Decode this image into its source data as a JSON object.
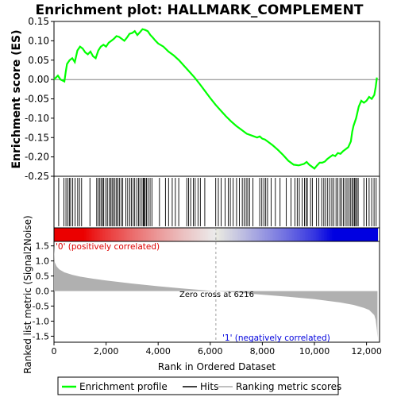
{
  "chart_data": {
    "type": "line",
    "title": "Enrichment plot: HALLMARK_COMPLEMENT",
    "xlabel": "Rank in Ordered Dataset",
    "top_ylabel": "Enrichment score (ES)",
    "bottom_ylabel": "Ranked list metric (Signal2Noise)",
    "xlim": [
      0,
      12500
    ],
    "top_ylim": [
      -0.25,
      0.15
    ],
    "bottom_ylim": [
      -1.7,
      1.65
    ],
    "x_ticks": [
      0,
      2000,
      4000,
      6000,
      8000,
      10000,
      12000
    ],
    "x_tick_labels": [
      "0",
      "2,000",
      "4,000",
      "6,000",
      "8,000",
      "10,000",
      "12,000"
    ],
    "top_y_ticks": [
      0.15,
      0.1,
      0.05,
      0.0,
      -0.05,
      -0.1,
      -0.15,
      -0.2,
      -0.25
    ],
    "top_y_tick_labels": [
      "0.15",
      "0.10",
      "0.05",
      "0.00",
      "-0.05",
      "-0.10",
      "-0.15",
      "-0.20",
      "-0.25"
    ],
    "bottom_y_ticks": [
      1.5,
      1.0,
      0.5,
      0.0,
      -0.5,
      -1.0,
      -1.5
    ],
    "bottom_y_tick_labels": [
      "1.5",
      "1.0",
      "0.5",
      "0.0",
      "-0.5",
      "-1.0",
      "-1.5"
    ],
    "series": [
      {
        "name": "Enrichment profile",
        "color": "#00ff00",
        "x": [
          0,
          150,
          250,
          400,
          450,
          500,
          600,
          700,
          800,
          900,
          1000,
          1100,
          1200,
          1300,
          1400,
          1500,
          1600,
          1700,
          1800,
          1900,
          2000,
          2100,
          2200,
          2300,
          2400,
          2500,
          2600,
          2700,
          2800,
          2900,
          3000,
          3100,
          3200,
          3300,
          3400,
          3500,
          3600,
          3700,
          3800,
          3900,
          4000,
          4200,
          4400,
          4600,
          4800,
          5000,
          5200,
          5400,
          5600,
          5800,
          6000,
          6200,
          6400,
          6600,
          6800,
          7000,
          7200,
          7400,
          7600,
          7800,
          7900,
          8000,
          8100,
          8200,
          8400,
          8600,
          8800,
          9000,
          9200,
          9400,
          9600,
          9700,
          9800,
          9900,
          10000,
          10100,
          10200,
          10300,
          10400,
          10500,
          10600,
          10700,
          10800,
          10900,
          11000,
          11100,
          11200,
          11300,
          11400,
          11450,
          11500,
          11600,
          11700,
          11800,
          11900,
          12000,
          12100,
          12200,
          12300,
          12350,
          12400
        ],
        "y": [
          0.0,
          0.01,
          0.0,
          -0.005,
          0.02,
          0.04,
          0.05,
          0.055,
          0.045,
          0.075,
          0.085,
          0.08,
          0.07,
          0.065,
          0.072,
          0.06,
          0.055,
          0.075,
          0.085,
          0.09,
          0.085,
          0.095,
          0.1,
          0.105,
          0.112,
          0.11,
          0.105,
          0.1,
          0.108,
          0.118,
          0.12,
          0.125,
          0.115,
          0.122,
          0.13,
          0.128,
          0.125,
          0.115,
          0.108,
          0.1,
          0.093,
          0.085,
          0.072,
          0.062,
          0.05,
          0.035,
          0.02,
          0.005,
          -0.012,
          -0.03,
          -0.048,
          -0.065,
          -0.08,
          -0.095,
          -0.108,
          -0.12,
          -0.13,
          -0.14,
          -0.145,
          -0.15,
          -0.147,
          -0.153,
          -0.155,
          -0.16,
          -0.17,
          -0.182,
          -0.195,
          -0.21,
          -0.22,
          -0.222,
          -0.218,
          -0.213,
          -0.22,
          -0.225,
          -0.23,
          -0.222,
          -0.215,
          -0.215,
          -0.212,
          -0.205,
          -0.2,
          -0.195,
          -0.198,
          -0.19,
          -0.192,
          -0.185,
          -0.18,
          -0.175,
          -0.16,
          -0.135,
          -0.12,
          -0.1,
          -0.07,
          -0.055,
          -0.06,
          -0.055,
          -0.045,
          -0.05,
          -0.04,
          -0.02,
          0.005
        ]
      },
      {
        "name": "Hits",
        "color": "#000000",
        "x": [
          180,
          380,
          460,
          530,
          590,
          640,
          720,
          810,
          910,
          980,
          1060,
          1380,
          1640,
          1700,
          1760,
          1810,
          1870,
          1910,
          1990,
          2050,
          2120,
          2180,
          2230,
          2280,
          2340,
          2400,
          2450,
          2510,
          2580,
          2640,
          2760,
          2830,
          2910,
          2970,
          3040,
          3100,
          3180,
          3250,
          3300,
          3380,
          3430,
          3460,
          3500,
          3550,
          3610,
          3690,
          3760,
          4050,
          4280,
          4400,
          4540,
          4660,
          4790,
          5100,
          5170,
          5250,
          5350,
          5420,
          5530,
          5620,
          5790,
          6210,
          6310,
          6420,
          6570,
          6690,
          6770,
          6880,
          7010,
          7120,
          7230,
          7300,
          7380,
          7440,
          7510,
          7640,
          7900,
          7980,
          8060,
          8130,
          8200,
          8340,
          8500,
          8680,
          8920,
          9100,
          9250,
          9340,
          9420,
          9530,
          9620,
          9680,
          9730,
          9850,
          9920,
          10080,
          10170,
          10280,
          10360,
          10430,
          10510,
          10590,
          10670,
          10740,
          10830,
          10900,
          10980,
          11040,
          11110,
          11180,
          11250,
          11320,
          11380,
          11440,
          11490,
          11540,
          11580,
          11630,
          11680,
          11900,
          12000,
          12100,
          12200,
          12290,
          12370
        ]
      },
      {
        "name": "Ranking metric scores",
        "color": "#c0c0c0",
        "x": [
          0,
          30,
          100,
          200,
          400,
          700,
          1000,
          1500,
          2000,
          3000,
          4000,
          5000,
          6000,
          6216,
          7000,
          8000,
          9000,
          10000,
          11000,
          11500,
          11900,
          12100,
          12300,
          12350,
          12400,
          12420
        ],
        "y": [
          1.5,
          0.95,
          0.82,
          0.72,
          0.62,
          0.54,
          0.48,
          0.41,
          0.35,
          0.25,
          0.16,
          0.08,
          0.01,
          0.0,
          -0.05,
          -0.12,
          -0.19,
          -0.27,
          -0.38,
          -0.46,
          -0.56,
          -0.63,
          -0.8,
          -0.95,
          -1.3,
          -1.55
        ]
      }
    ],
    "zero_cross_x": 6216,
    "annotations": {
      "zero_cross": "Zero cross at 6216",
      "positive": "'0' (positively correlated)",
      "negative": "'1' (negatively correlated)"
    },
    "heatmap_colors": {
      "positive": "#dd0000",
      "negative": "#0000dd",
      "neutral": "#ffffff",
      "positive_correlated_label": "#dd0000",
      "negative_correlated_label": "#0000dd"
    },
    "legend_position": "bottom",
    "grid": false
  }
}
